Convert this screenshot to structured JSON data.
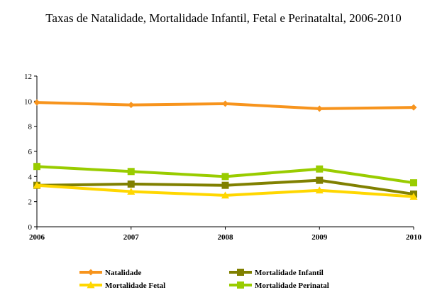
{
  "chart_data": {
    "type": "line",
    "title": "Taxas de Natalidade, Mortalidade Infantil, Fetal e Perinataltal, 2006-2010",
    "x": [
      "2006",
      "2007",
      "2008",
      "2009",
      "2010"
    ],
    "ylim": [
      0,
      12
    ],
    "yticks": [
      0,
      2,
      4,
      6,
      8,
      10,
      12
    ],
    "grid": false,
    "legend_position": "bottom",
    "series": [
      {
        "name": "Natalidade",
        "color": "#f7941d",
        "marker": "diamond",
        "values": [
          9.9,
          9.7,
          9.8,
          9.4,
          9.5
        ]
      },
      {
        "name": "Mortalidade Infantil",
        "color": "#808000",
        "marker": "square",
        "values": [
          3.3,
          3.4,
          3.3,
          3.7,
          2.6
        ]
      },
      {
        "name": "Mortalidade Fetal",
        "color": "#ffd700",
        "marker": "triangle",
        "values": [
          3.3,
          2.8,
          2.5,
          2.9,
          2.4
        ]
      },
      {
        "name": "Mortalidade Perinatal",
        "color": "#99cc00",
        "marker": "square",
        "values": [
          4.8,
          4.4,
          4.0,
          4.6,
          3.5
        ]
      }
    ]
  }
}
